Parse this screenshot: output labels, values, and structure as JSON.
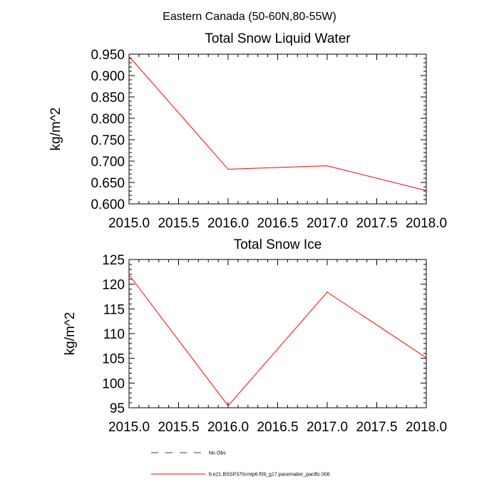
{
  "figure_title": "Eastern Canada (50-60N,80-55W)",
  "chart_data": [
    {
      "type": "line",
      "title": "Total Snow Liquid Water",
      "xlabel": "",
      "ylabel": "kg/m^2",
      "xlim": [
        2015.0,
        2018.0
      ],
      "ylim": [
        0.6,
        0.95
      ],
      "xticks": [
        "2015.0",
        "2015.5",
        "2016.0",
        "2016.5",
        "2017.0",
        "2017.5",
        "2018.0"
      ],
      "yticks": [
        "0.600",
        "0.650",
        "0.700",
        "0.750",
        "0.800",
        "0.850",
        "0.900",
        "0.950"
      ],
      "series": [
        {
          "name": "b.e21.BSSP370cmip6.f09_g17.pacemaker_pacific.006",
          "color": "#ff0000",
          "x": [
            2015,
            2016,
            2017,
            2018
          ],
          "values": [
            0.945,
            0.681,
            0.689,
            0.631
          ]
        }
      ]
    },
    {
      "type": "line",
      "title": "Total Snow Ice",
      "xlabel": "",
      "ylabel": "kg/m^2",
      "xlim": [
        2015.0,
        2018.0
      ],
      "ylim": [
        95,
        125
      ],
      "xticks": [
        "2015.0",
        "2015.5",
        "2016.0",
        "2016.5",
        "2017.0",
        "2017.5",
        "2018.0"
      ],
      "yticks": [
        "95",
        "100",
        "105",
        "110",
        "115",
        "120",
        "125"
      ],
      "series": [
        {
          "name": "b.e21.BSSP370cmip6.f09_g17.pacemaker_pacific.006",
          "color": "#ff0000",
          "x": [
            2015,
            2016,
            2017,
            2018
          ],
          "values": [
            121.9,
            95.4,
            118.4,
            105.1
          ]
        }
      ]
    }
  ],
  "legend": [
    {
      "label": "No Obs",
      "color": "#3333aa",
      "style": "dashed"
    },
    {
      "label": "b.e21.BSSP370cmip6.f09_g17.pacemaker_pacific.006",
      "color": "#ff0000",
      "style": "solid"
    }
  ]
}
